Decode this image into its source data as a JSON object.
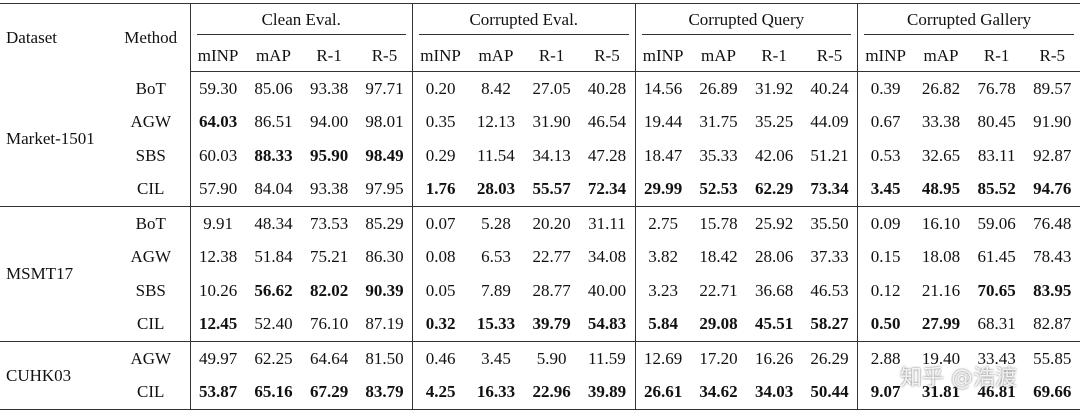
{
  "header": {
    "dataset": "Dataset",
    "method": "Method",
    "groups": [
      "Clean Eval.",
      "Corrupted Eval.",
      "Corrupted Query",
      "Corrupted Gallery"
    ],
    "metrics": [
      "mINP",
      "mAP",
      "R-1",
      "R-5"
    ]
  },
  "sections": [
    {
      "dataset": "Market-1501",
      "rows": [
        {
          "method": "BoT",
          "values": [
            "59.30",
            "85.06",
            "93.38",
            "97.71",
            "0.20",
            "8.42",
            "27.05",
            "40.28",
            "14.56",
            "26.89",
            "31.92",
            "40.24",
            "0.39",
            "26.82",
            "76.78",
            "89.57"
          ],
          "bold": []
        },
        {
          "method": "AGW",
          "values": [
            "64.03",
            "86.51",
            "94.00",
            "98.01",
            "0.35",
            "12.13",
            "31.90",
            "46.54",
            "19.44",
            "31.75",
            "35.25",
            "44.09",
            "0.67",
            "33.38",
            "80.45",
            "91.90"
          ],
          "bold": [
            0
          ]
        },
        {
          "method": "SBS",
          "values": [
            "60.03",
            "88.33",
            "95.90",
            "98.49",
            "0.29",
            "11.54",
            "34.13",
            "47.28",
            "18.47",
            "35.33",
            "42.06",
            "51.21",
            "0.53",
            "32.65",
            "83.11",
            "92.87"
          ],
          "bold": [
            1,
            2,
            3
          ]
        },
        {
          "method": "CIL",
          "values": [
            "57.90",
            "84.04",
            "93.38",
            "97.95",
            "1.76",
            "28.03",
            "55.57",
            "72.34",
            "29.99",
            "52.53",
            "62.29",
            "73.34",
            "3.45",
            "48.95",
            "85.52",
            "94.76"
          ],
          "bold": [
            4,
            5,
            6,
            7,
            8,
            9,
            10,
            11,
            12,
            13,
            14,
            15
          ]
        }
      ]
    },
    {
      "dataset": "MSMT17",
      "rows": [
        {
          "method": "BoT",
          "values": [
            "9.91",
            "48.34",
            "73.53",
            "85.29",
            "0.07",
            "5.28",
            "20.20",
            "31.11",
            "2.75",
            "15.78",
            "25.92",
            "35.50",
            "0.09",
            "16.10",
            "59.06",
            "76.48"
          ],
          "bold": []
        },
        {
          "method": "AGW",
          "values": [
            "12.38",
            "51.84",
            "75.21",
            "86.30",
            "0.08",
            "6.53",
            "22.77",
            "34.08",
            "3.82",
            "18.42",
            "28.06",
            "37.33",
            "0.15",
            "18.08",
            "61.45",
            "78.43"
          ],
          "bold": []
        },
        {
          "method": "SBS",
          "values": [
            "10.26",
            "56.62",
            "82.02",
            "90.39",
            "0.05",
            "7.89",
            "28.77",
            "40.00",
            "3.23",
            "22.71",
            "36.68",
            "46.53",
            "0.12",
            "21.16",
            "70.65",
            "83.95"
          ],
          "bold": [
            1,
            2,
            3,
            14,
            15
          ]
        },
        {
          "method": "CIL",
          "values": [
            "12.45",
            "52.40",
            "76.10",
            "87.19",
            "0.32",
            "15.33",
            "39.79",
            "54.83",
            "5.84",
            "29.08",
            "45.51",
            "58.27",
            "0.50",
            "27.99",
            "68.31",
            "82.87"
          ],
          "bold": [
            0,
            4,
            5,
            6,
            7,
            8,
            9,
            10,
            11,
            12,
            13
          ]
        }
      ]
    },
    {
      "dataset": "CUHK03",
      "rows": [
        {
          "method": "AGW",
          "values": [
            "49.97",
            "62.25",
            "64.64",
            "81.50",
            "0.46",
            "3.45",
            "5.90",
            "11.59",
            "12.69",
            "17.20",
            "16.26",
            "26.29",
            "2.88",
            "19.40",
            "33.43",
            "55.85"
          ],
          "bold": []
        },
        {
          "method": "CIL",
          "values": [
            "53.87",
            "65.16",
            "67.29",
            "83.79",
            "4.25",
            "16.33",
            "22.96",
            "39.89",
            "26.61",
            "34.62",
            "34.03",
            "50.44",
            "9.07",
            "31.81",
            "46.81",
            "69.66"
          ],
          "bold": [
            0,
            1,
            2,
            3,
            4,
            5,
            6,
            7,
            8,
            9,
            10,
            11,
            12,
            13,
            14,
            15
          ]
        }
      ]
    }
  ],
  "watermark": "知乎 @浩渡"
}
